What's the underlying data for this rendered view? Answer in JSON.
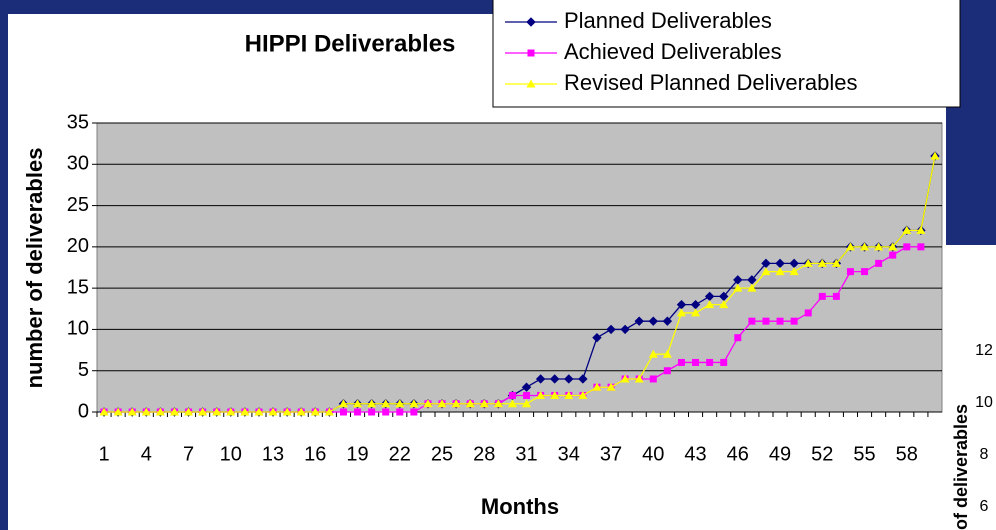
{
  "chart_data": {
    "type": "line",
    "title": "HIPPI Deliverables",
    "x_label": "Months",
    "y_label": "number of deliverables",
    "categories": [
      1,
      null,
      null,
      4,
      null,
      null,
      7,
      null,
      null,
      10,
      null,
      null,
      13,
      null,
      null,
      16,
      null,
      null,
      19,
      null,
      null,
      22,
      null,
      null,
      25,
      null,
      null,
      28,
      null,
      null,
      31,
      null,
      null,
      34,
      null,
      null,
      37,
      null,
      null,
      40,
      null,
      null,
      43,
      null,
      null,
      46,
      null,
      null,
      49,
      null,
      null,
      52,
      null,
      null,
      55,
      null,
      null,
      58,
      null,
      null
    ],
    "series": [
      {
        "name": "Planned Deliverables",
        "color": "#000080",
        "marker": "diamond",
        "values": [
          0,
          0,
          0,
          0,
          0,
          0,
          0,
          0,
          0,
          0,
          0,
          0,
          0,
          0,
          0,
          0,
          0,
          1,
          1,
          1,
          1,
          1,
          1,
          1,
          1,
          1,
          1,
          1,
          1,
          2,
          3,
          4,
          4,
          4,
          4,
          9,
          10,
          10,
          11,
          11,
          11,
          13,
          13,
          14,
          14,
          16,
          16,
          18,
          18,
          18,
          18,
          18,
          18,
          20,
          20,
          20,
          20,
          22,
          22,
          31
        ]
      },
      {
        "name": "Achieved Deliverables",
        "color": "#ff00ff",
        "marker": "square",
        "values": [
          0,
          0,
          0,
          0,
          0,
          0,
          0,
          0,
          0,
          0,
          0,
          0,
          0,
          0,
          0,
          0,
          0,
          0,
          0,
          0,
          0,
          0,
          0,
          1,
          1,
          1,
          1,
          1,
          1,
          2,
          2,
          2,
          2,
          2,
          2,
          3,
          3,
          4,
          4,
          4,
          5,
          6,
          6,
          6,
          6,
          9,
          11,
          11,
          11,
          11,
          12,
          14,
          14,
          17,
          17,
          18,
          19,
          20,
          20,
          null
        ]
      },
      {
        "name": "Revised Planned Deliverables",
        "color": "#ffff00",
        "marker": "triangle",
        "values": [
          0,
          0,
          0,
          0,
          0,
          0,
          0,
          0,
          0,
          0,
          0,
          0,
          0,
          0,
          0,
          0,
          0,
          1,
          1,
          1,
          1,
          1,
          1,
          1,
          1,
          1,
          1,
          1,
          1,
          1,
          1,
          2,
          2,
          2,
          2,
          3,
          3,
          4,
          4,
          7,
          7,
          12,
          12,
          13,
          13,
          15,
          15,
          17,
          17,
          17,
          18,
          18,
          18,
          20,
          20,
          20,
          20,
          22,
          22,
          31
        ]
      }
    ],
    "ylim": [
      0,
      35
    ],
    "yticks": [
      0,
      5,
      10,
      15,
      20,
      25,
      30,
      35
    ],
    "grid": true,
    "plot_background": "#c0c0c0",
    "legend": "top-right"
  },
  "background_chart": {
    "y_label": "of deliverables",
    "yticks": [
      6,
      8,
      10,
      12
    ]
  }
}
